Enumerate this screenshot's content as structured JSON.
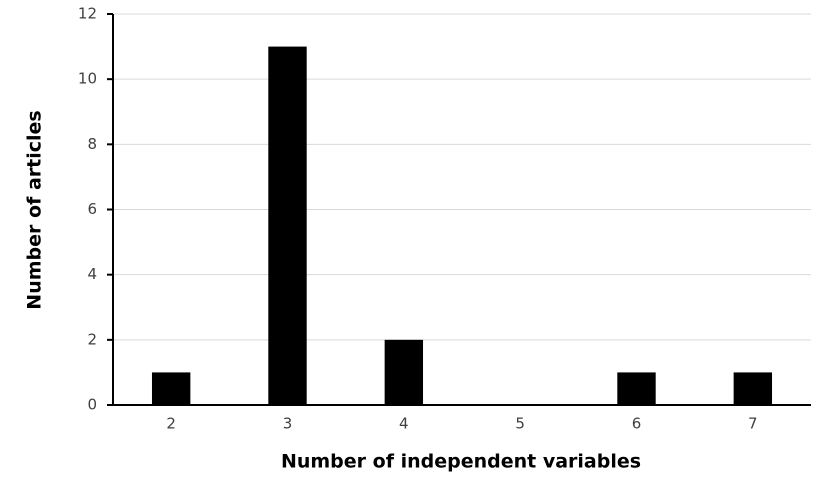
{
  "chart_data": {
    "type": "bar",
    "x_label": "Number of independent variables",
    "y_label": "Number of articles",
    "categories": [
      "2",
      "3",
      "4",
      "5",
      "6",
      "7"
    ],
    "values": [
      1,
      11,
      2,
      0,
      1,
      1
    ],
    "color": "#000000",
    "ylim": [
      0,
      12
    ],
    "yticks": [
      0,
      2,
      4,
      6,
      8,
      10,
      12
    ],
    "grid": true
  }
}
